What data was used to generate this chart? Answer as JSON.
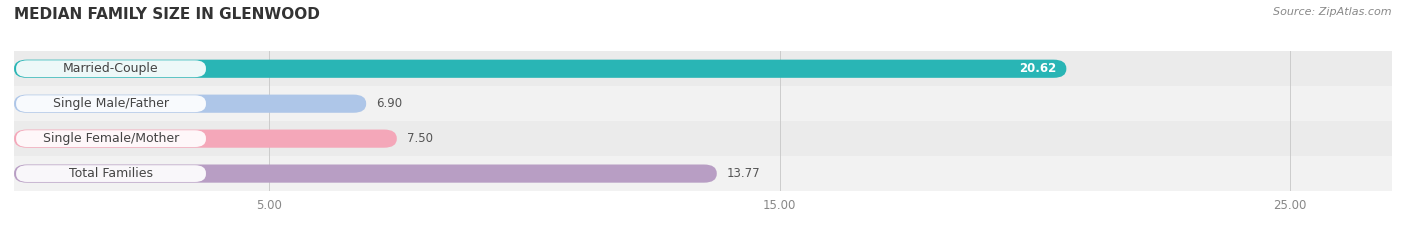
{
  "title": "MEDIAN FAMILY SIZE IN GLENWOOD",
  "source": "Source: ZipAtlas.com",
  "categories": [
    "Married-Couple",
    "Single Male/Father",
    "Single Female/Mother",
    "Total Families"
  ],
  "values": [
    20.62,
    6.9,
    7.5,
    13.77
  ],
  "bar_colors": [
    "#29b5b5",
    "#aec6e8",
    "#f4a7b9",
    "#b89ec4"
  ],
  "row_bg_colors": [
    "#ebebeb",
    "#f2f2f2",
    "#ebebeb",
    "#f2f2f2"
  ],
  "xlim_data": [
    0,
    27
  ],
  "xticks": [
    5.0,
    15.0,
    25.0
  ],
  "bar_height": 0.52,
  "bg_color": "#ffffff",
  "title_fontsize": 11,
  "label_fontsize": 9,
  "value_fontsize": 8.5,
  "source_fontsize": 8
}
